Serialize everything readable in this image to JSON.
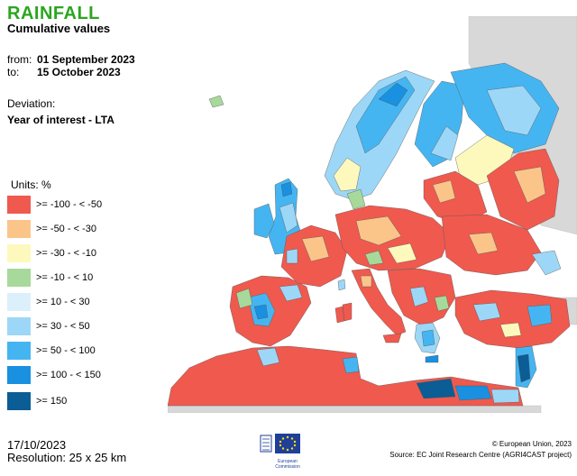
{
  "header": {
    "title": "RAINFALL",
    "subtitle": "Cumulative values"
  },
  "period": {
    "from_label": "from:",
    "from_value": "01 September 2023",
    "to_label": "to:",
    "to_value": "15 October 2023"
  },
  "deviation": {
    "label": "Deviation:",
    "value": "Year of interest - LTA"
  },
  "legend": {
    "title": "Units: %",
    "items": [
      {
        "label": ">= -100 - < -50",
        "color": "#f0594e"
      },
      {
        "label": ">= -50 - < -30",
        "color": "#fbc58a"
      },
      {
        "label": ">= -30 - < -10",
        "color": "#fdf9bd"
      },
      {
        "label": ">= -10 - < 10",
        "color": "#a7d99b"
      },
      {
        "label": ">= 10 - < 30",
        "color": "#dcf0fc"
      },
      {
        "label": ">= 30 - < 50",
        "color": "#9dd7f7"
      },
      {
        "label": ">= 50 - < 100",
        "color": "#45b5f2"
      },
      {
        "label": ">= 100 - < 150",
        "color": "#1990e0"
      },
      {
        "label": ">= 150",
        "color": "#0b5d95"
      }
    ]
  },
  "map": {
    "no_data_color": "#d8d8d8",
    "border_color": "#555555"
  },
  "footer": {
    "date": "17/10/2023",
    "resolution": "Resolution: 25 x 25 km",
    "copyright": "© European Union, 2023",
    "source": "Source: EC Joint Research Centre (AGRI4CAST project)",
    "logo_text_1": "European",
    "logo_text_2": "Commission"
  }
}
